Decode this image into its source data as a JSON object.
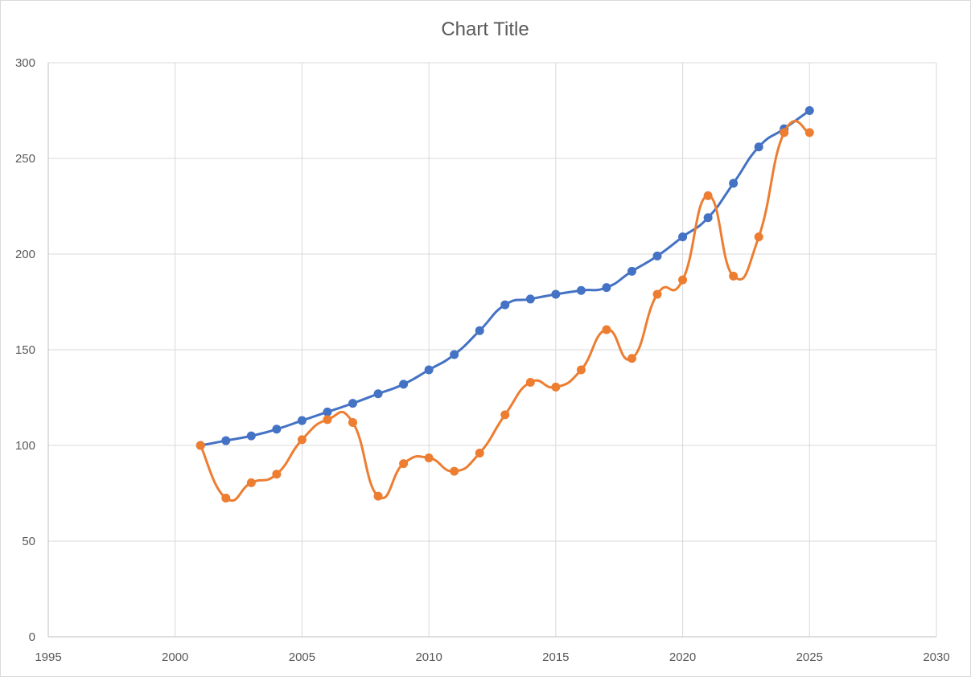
{
  "chart_data": {
    "type": "scatter",
    "title": "Chart Title",
    "xlabel": "",
    "ylabel": "",
    "xlim": [
      1995,
      2030
    ],
    "ylim": [
      0,
      300
    ],
    "x_ticks": [
      1995,
      2000,
      2005,
      2010,
      2015,
      2020,
      2025,
      2030
    ],
    "y_ticks": [
      0,
      50,
      100,
      150,
      200,
      250,
      300
    ],
    "grid": true,
    "legend": "none",
    "smooth_lines": true,
    "series": [
      {
        "color": "#4472C4",
        "x": [
          2001,
          2002,
          2003,
          2004,
          2005,
          2006,
          2007,
          2008,
          2009,
          2010,
          2011,
          2012,
          2013,
          2014,
          2015,
          2016,
          2017,
          2018,
          2019,
          2020,
          2021,
          2022,
          2023,
          2024,
          2025
        ],
        "y": [
          100,
          102.5,
          105,
          108.5,
          113,
          117.5,
          122,
          127,
          132,
          139.5,
          147.5,
          160,
          173.5,
          176.5,
          179,
          181,
          182.5,
          191,
          199,
          209,
          219,
          237,
          256,
          265.5,
          275
        ]
      },
      {
        "color": "#ED7D31",
        "x": [
          2001,
          2002,
          2003,
          2004,
          2005,
          2006,
          2007,
          2008,
          2009,
          2010,
          2011,
          2012,
          2013,
          2014,
          2015,
          2016,
          2017,
          2018,
          2019,
          2020,
          2021,
          2022,
          2023,
          2024,
          2025
        ],
        "y": [
          100,
          72.5,
          80.5,
          85,
          103,
          113.5,
          112,
          73.5,
          90.5,
          93.5,
          86.5,
          96,
          116,
          133,
          130.5,
          139.5,
          160.5,
          145.5,
          179,
          186.5,
          230.5,
          188.5,
          209,
          263.5,
          263.5
        ]
      }
    ]
  }
}
